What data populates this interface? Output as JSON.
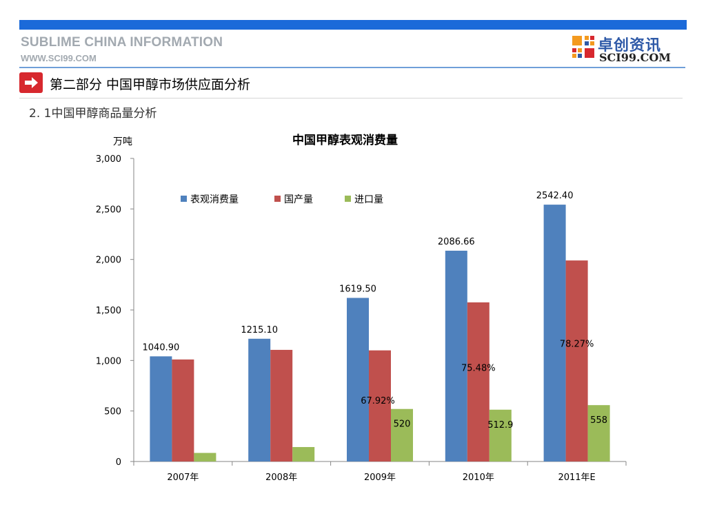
{
  "header": {
    "brand_title": "SUBLIME CHINA INFORMATION",
    "brand_url": "WWW.SCI99.COM",
    "logo_cn": "卓创资讯",
    "logo_en": "SCI99.COM",
    "accent_color": "#1b6ad9"
  },
  "section": {
    "title": "第二部分 中国甲醇市场供应面分析",
    "subtitle": "2. 1中国甲醇商品量分析",
    "icon": "arrow-right-icon"
  },
  "chart_data": {
    "type": "bar",
    "title": "中国甲醇表观消费量",
    "unit_label": "万吨",
    "categories": [
      "2007年",
      "2008年",
      "2009年",
      "2010年",
      "2011年E"
    ],
    "ylim": [
      0,
      3000
    ],
    "yticks": [
      "0",
      "500",
      "1,000",
      "1,500",
      "2,000",
      "2,500",
      "3,000"
    ],
    "legend_position": "top",
    "series": [
      {
        "name": "表观消费量",
        "color": "#4f81bd",
        "values": [
          1040.9,
          1215.1,
          1619.5,
          2086.66,
          2542.4
        ],
        "labels": [
          "1040.90",
          "1215.10",
          "1619.50",
          "2086.66",
          "2542.40"
        ]
      },
      {
        "name": "国产量",
        "color": "#c0504d",
        "values": [
          1010,
          1105,
          1100,
          1575,
          1990
        ],
        "labels": [
          "",
          "",
          "67.92%",
          "75.48%",
          "78.27%"
        ]
      },
      {
        "name": "进口量",
        "color": "#9bbb59",
        "values": [
          85,
          143,
          520,
          512.9,
          558
        ],
        "labels": [
          "",
          "",
          "520",
          "512.9",
          "558"
        ]
      }
    ]
  }
}
